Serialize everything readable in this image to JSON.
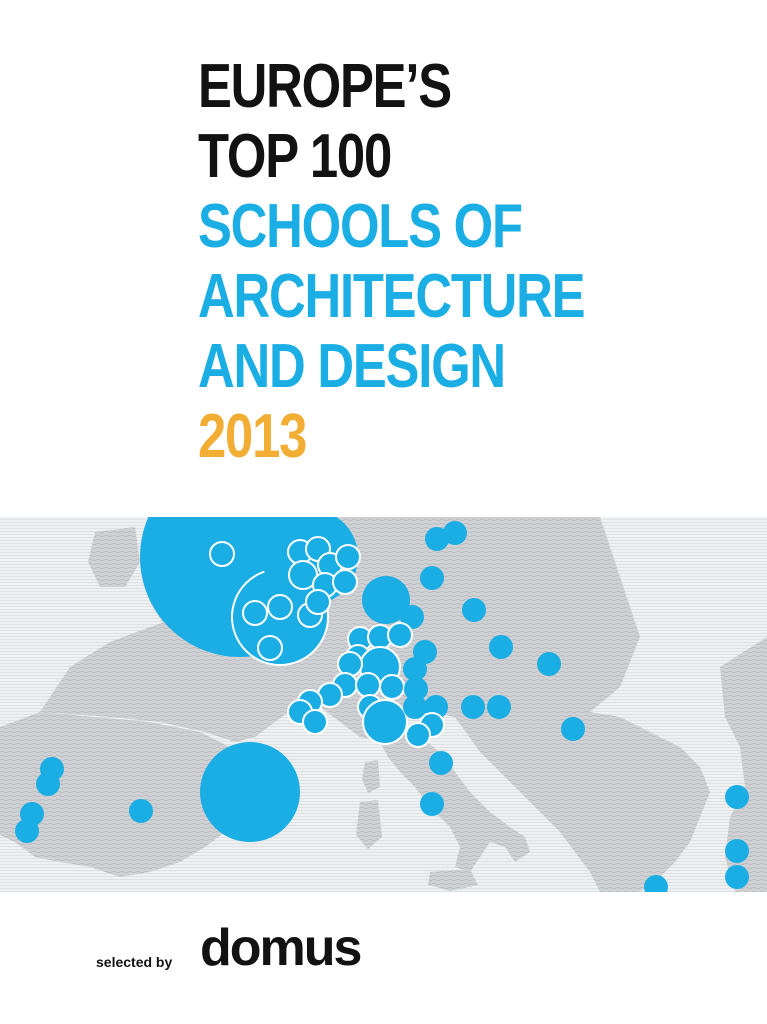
{
  "cover": {
    "title_lines": {
      "line1": "EUROPE’S",
      "line2": "TOP 100",
      "line3": "SCHOOLS OF",
      "line4": "ARCHITECTURE",
      "line5": "AND DESIGN",
      "line6": "2013"
    },
    "colors": {
      "title_black": "#121212",
      "title_blue": "#1aaee5",
      "title_yellow": "#f2ad35",
      "map_land": "#c9cbce",
      "map_sea": "#eef0f2",
      "marker": "#1aaee5"
    },
    "map": {
      "icon": "europe-map-with-school-markers"
    },
    "footer": {
      "selected_by": "selected by",
      "logo": "domus"
    }
  }
}
